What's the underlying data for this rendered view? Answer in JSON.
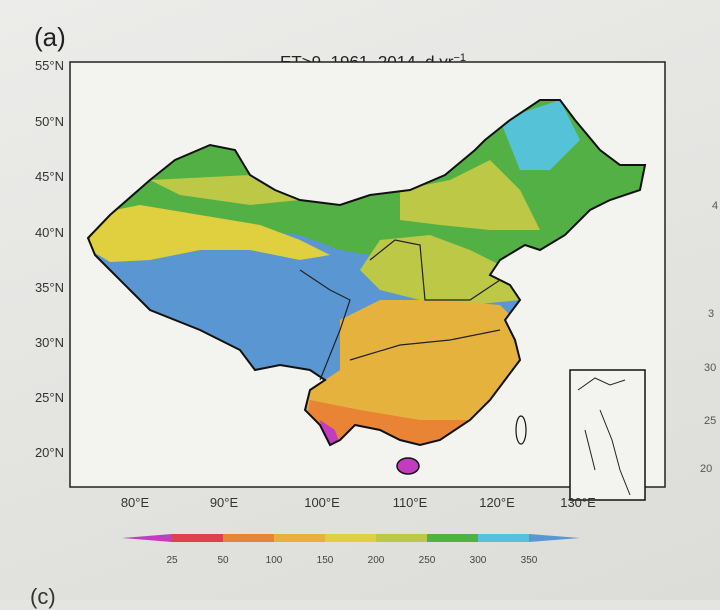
{
  "panel_label": "(a)",
  "title": {
    "main": "ET>9, 1961–2014, d yr",
    "sup": "−1"
  },
  "lat_labels": [
    "55°N",
    "50°N",
    "45°N",
    "40°N",
    "35°N",
    "30°N",
    "25°N",
    "20°N"
  ],
  "lon_labels": [
    "80°E",
    "90°E",
    "100°E",
    "110°E",
    "120°E",
    "130°E"
  ],
  "colorbar": {
    "ticks": [
      "25",
      "50",
      "100",
      "150",
      "200",
      "250",
      "300",
      "350"
    ],
    "colors": [
      "#c23cc0",
      "#e0404e",
      "#e88434",
      "#e6b23e",
      "#e0d040",
      "#bcc846",
      "#52b044",
      "#56c2d8",
      "#5a96d2"
    ]
  },
  "next_panel_fragment": "(c)",
  "edge_fragments": [
    "4",
    "3",
    "30",
    "25",
    "20"
  ]
}
